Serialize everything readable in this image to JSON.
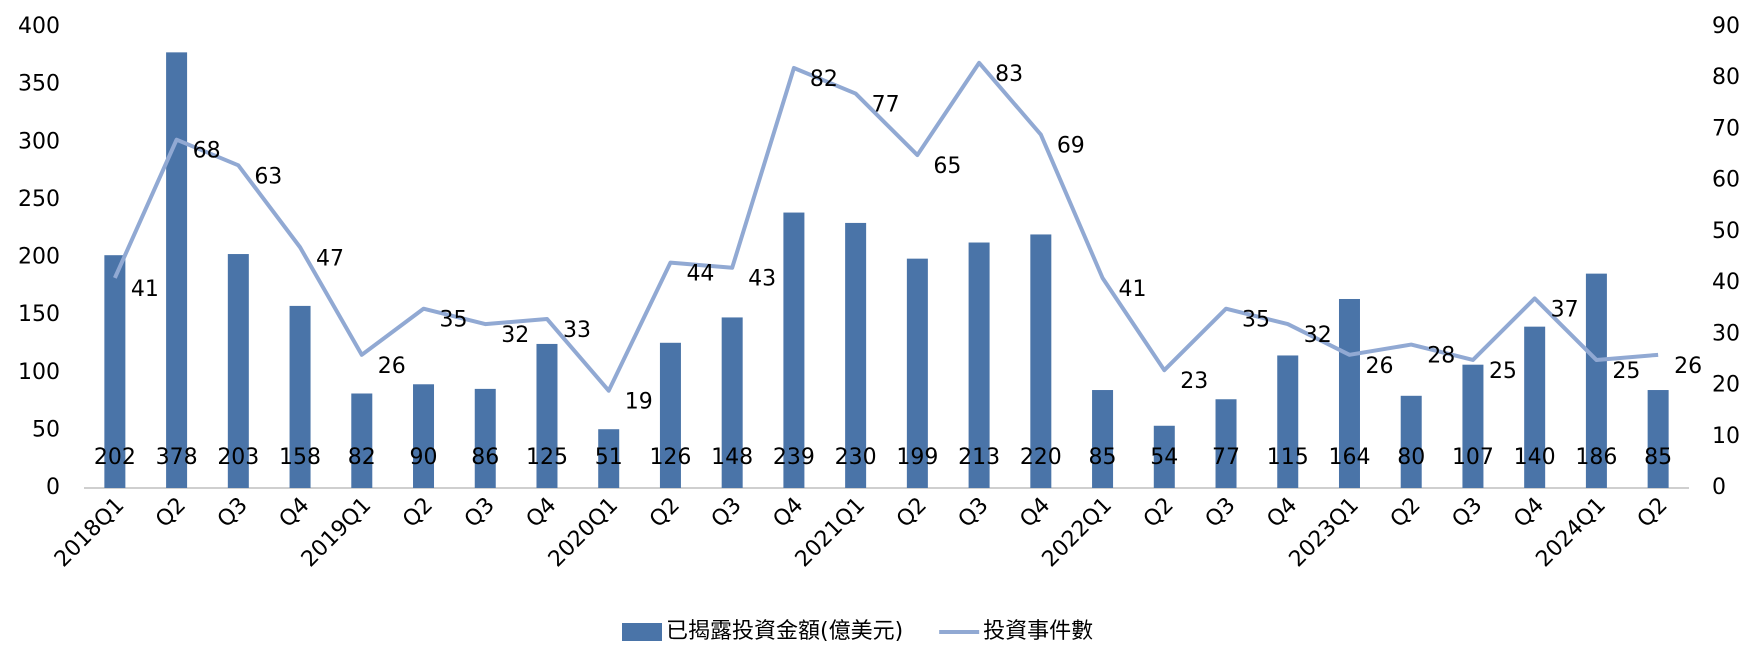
{
  "chart_data": {
    "type": "bar_line",
    "categories": [
      "2018Q1",
      "Q2",
      "Q3",
      "Q4",
      "2019Q1",
      "Q2",
      "Q3",
      "Q4",
      "2020Q1",
      "Q2",
      "Q3",
      "Q4",
      "2021Q1",
      "Q2",
      "Q3",
      "Q4",
      "2022Q1",
      "Q2",
      "Q3",
      "Q4",
      "2023Q1",
      "Q2",
      "Q3",
      "Q4",
      "2024Q1",
      "Q2"
    ],
    "series": [
      {
        "name": "已揭露投資金額(億美元)",
        "type": "bar",
        "color": "#4a74a8",
        "values": [
          202,
          378,
          203,
          158,
          82,
          90,
          86,
          125,
          51,
          126,
          148,
          239,
          230,
          199,
          213,
          220,
          85,
          54,
          77,
          115,
          164,
          80,
          107,
          140,
          186,
          85
        ]
      },
      {
        "name": "投資事件數",
        "type": "line",
        "axis": "y2",
        "color": "#91a9d3",
        "values": [
          41,
          68,
          63,
          47,
          26,
          35,
          32,
          33,
          19,
          44,
          43,
          82,
          77,
          65,
          83,
          69,
          41,
          23,
          35,
          32,
          26,
          28,
          25,
          37,
          25,
          26
        ]
      }
    ],
    "ylim": [
      0,
      400
    ],
    "yticks": [
      0,
      50,
      100,
      150,
      200,
      250,
      300,
      350,
      400
    ],
    "y2lim": [
      0,
      90
    ],
    "y2ticks": [
      0,
      10,
      20,
      30,
      40,
      50,
      60,
      70,
      80,
      90
    ],
    "grid": false,
    "legend": "bottom"
  }
}
